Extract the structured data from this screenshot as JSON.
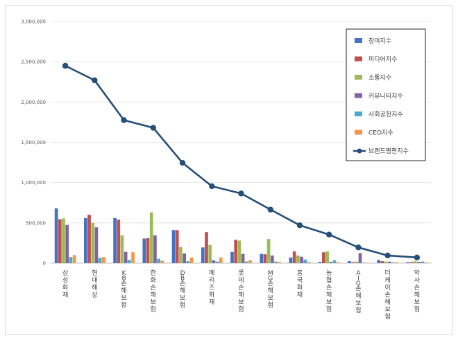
{
  "chart_data": {
    "type": "bar",
    "title": "",
    "xlabel": "",
    "ylabel": "",
    "ylim": [
      0,
      3000000
    ],
    "yticks": [
      "0",
      "500,000",
      "1,000,000",
      "1,500,000",
      "2,000,000",
      "2,500,000",
      "3,000,000"
    ],
    "legend_position": "top-right",
    "categories": [
      "삼성화재",
      "현대해상",
      "KB손해보험",
      "한화손해보험",
      "DB손해보험",
      "메리츠화재",
      "롯데손해보험",
      "MG손해보험",
      "흥국화재",
      "농협손해보험",
      "AIG손해보험",
      "더케이손해보험",
      "악사손해보험"
    ],
    "series": [
      {
        "name": "참여지수",
        "type": "bar",
        "color": "#4472c4",
        "values": [
          680000,
          560000,
          560000,
          305000,
          410000,
          195000,
          140000,
          115000,
          70000,
          15000,
          25000,
          40000,
          12000
        ]
      },
      {
        "name": "미디어지수",
        "type": "bar",
        "color": "#c0504d",
        "values": [
          545000,
          600000,
          540000,
          310000,
          410000,
          385000,
          290000,
          110000,
          145000,
          135000,
          12000,
          25000,
          12000
        ]
      },
      {
        "name": "소통지수",
        "type": "bar",
        "color": "#9bbb59",
        "values": [
          555000,
          500000,
          345000,
          630000,
          200000,
          225000,
          280000,
          300000,
          95000,
          145000,
          20000,
          20000,
          25000
        ]
      },
      {
        "name": "커뮤니티지수",
        "type": "bar",
        "color": "#8064a2",
        "values": [
          475000,
          445000,
          140000,
          345000,
          120000,
          35000,
          115000,
          95000,
          80000,
          15000,
          125000,
          18000,
          15000
        ]
      },
      {
        "name": "사회공헌지수",
        "type": "bar",
        "color": "#4bacc6",
        "values": [
          75000,
          65000,
          40000,
          55000,
          25000,
          20000,
          20000,
          20000,
          45000,
          35000,
          5000,
          10000,
          20000
        ]
      },
      {
        "name": "CEO지수",
        "type": "bar",
        "color": "#f79646",
        "values": [
          100000,
          75000,
          135000,
          30000,
          70000,
          70000,
          35000,
          15000,
          15000,
          10000,
          5000,
          10000,
          10000
        ]
      },
      {
        "name": "브랜드평판지수",
        "type": "line",
        "color": "#254f78",
        "values": [
          2450000,
          2270000,
          1775000,
          1680000,
          1245000,
          955000,
          865000,
          665000,
          470000,
          355000,
          195000,
          95000,
          70000
        ]
      }
    ]
  }
}
